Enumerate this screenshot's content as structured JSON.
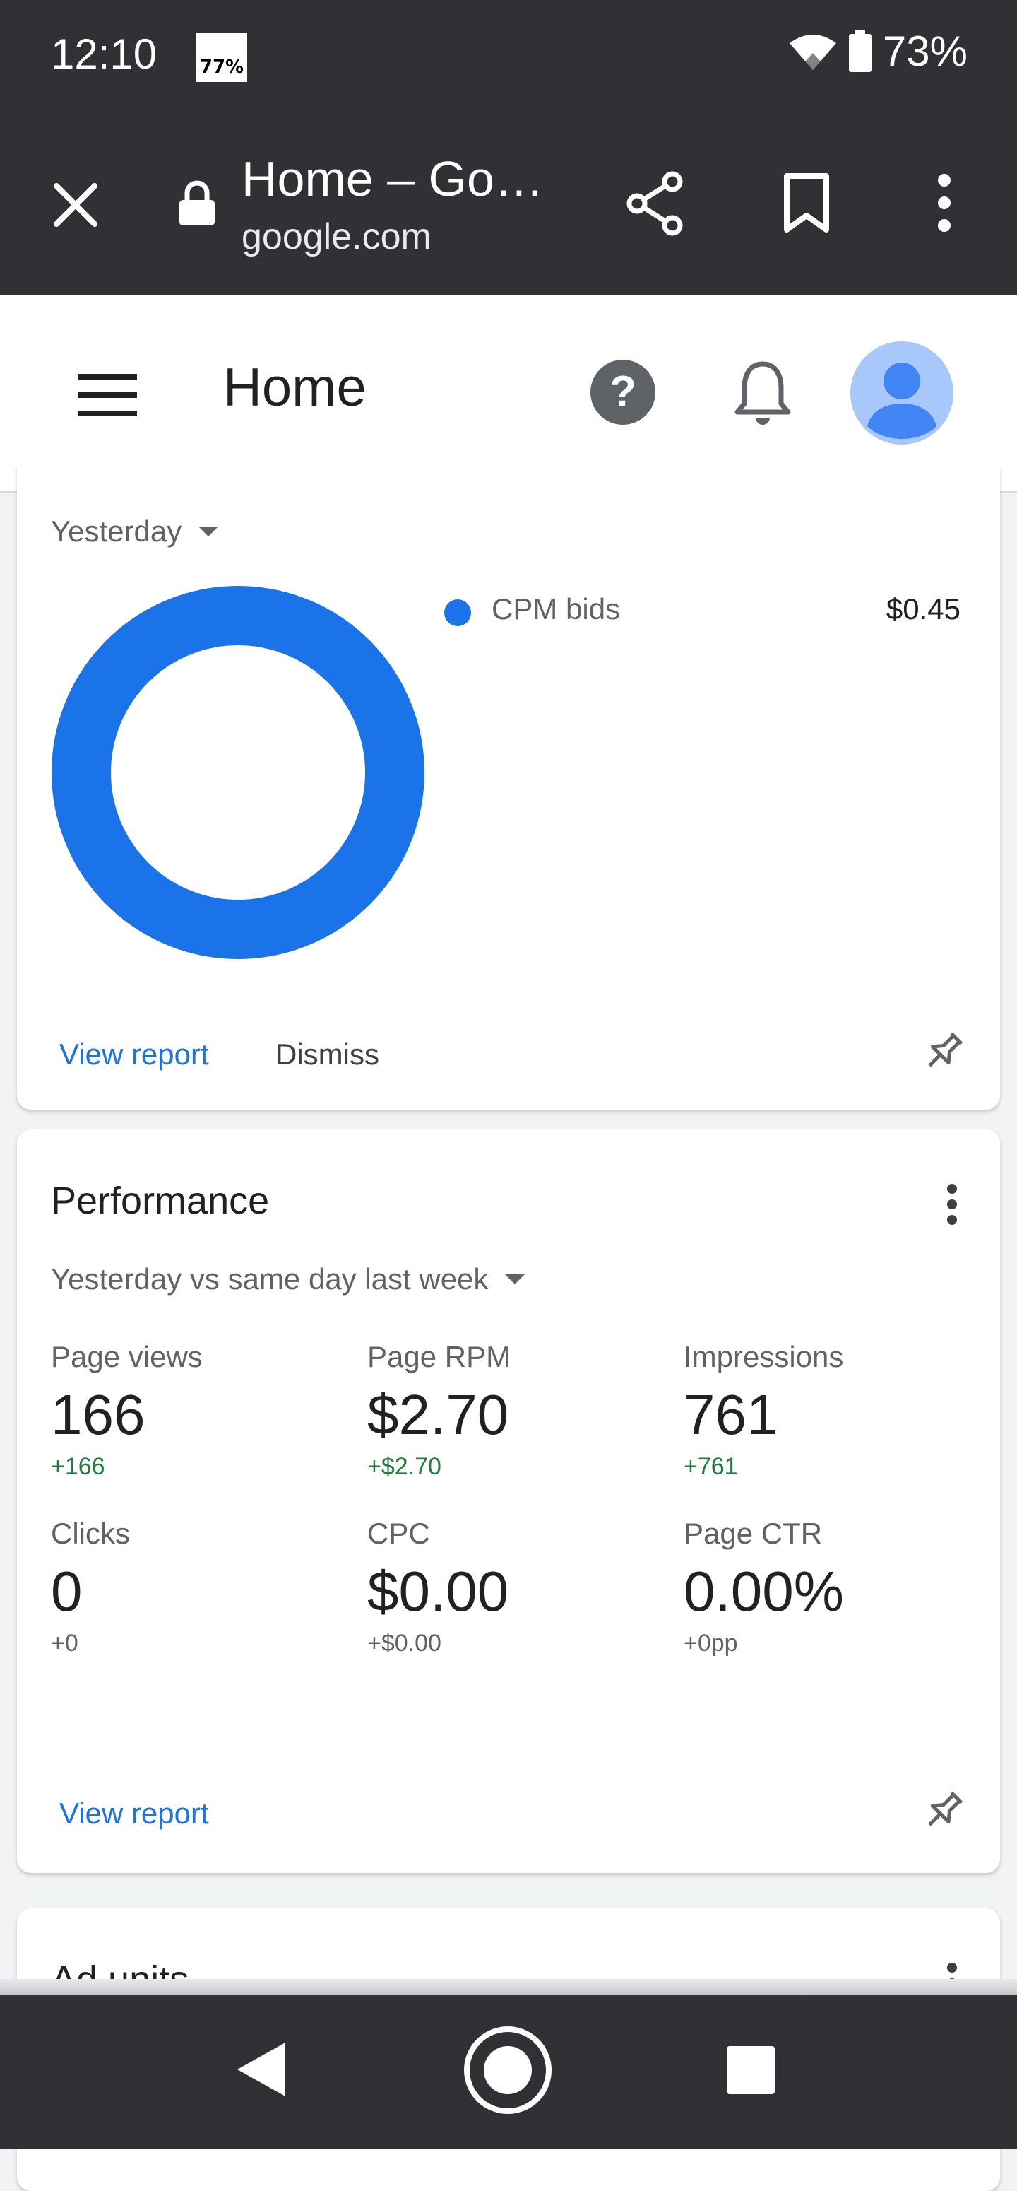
{
  "status_bar": {
    "time": "12:10",
    "notification_badge": "77%",
    "battery_percent": "73%"
  },
  "browser": {
    "page_title": "Home – Go…",
    "domain": "google.com"
  },
  "app_header": {
    "title": "Home"
  },
  "top_card": {
    "date_range": "Yesterday",
    "chart_data": {
      "type": "pie",
      "categories": [
        "CPM bids"
      ],
      "values": [
        0.45
      ],
      "colors": [
        "#1a73e8"
      ],
      "title": "",
      "legend_placement": "right"
    },
    "legend": [
      {
        "label": "CPM bids",
        "value": "$0.45",
        "color": "#1a73e8"
      }
    ],
    "view_report_label": "View report",
    "dismiss_label": "Dismiss"
  },
  "performance_card": {
    "title": "Performance",
    "comparison": "Yesterday vs same day last week",
    "metrics": [
      {
        "label": "Page views",
        "value": "166",
        "change": "+166",
        "positive": true
      },
      {
        "label": "Page RPM",
        "value": "$2.70",
        "change": "+$2.70",
        "positive": true
      },
      {
        "label": "Impressions",
        "value": "761",
        "change": "+761",
        "positive": true
      },
      {
        "label": "Clicks",
        "value": "0",
        "change": "+0",
        "positive": false
      },
      {
        "label": "CPC",
        "value": "$0.00",
        "change": "+$0.00",
        "positive": false
      },
      {
        "label": "Page CTR",
        "value": "0.00%",
        "change": "+0pp",
        "positive": false
      }
    ],
    "view_report_label": "View report"
  },
  "ad_units_card": {
    "title": "Ad units"
  },
  "colors": {
    "accent": "#1a73e8",
    "positive": "#188038",
    "chrome_dark": "#303134",
    "avatar_bg": "#a8c7fa"
  }
}
